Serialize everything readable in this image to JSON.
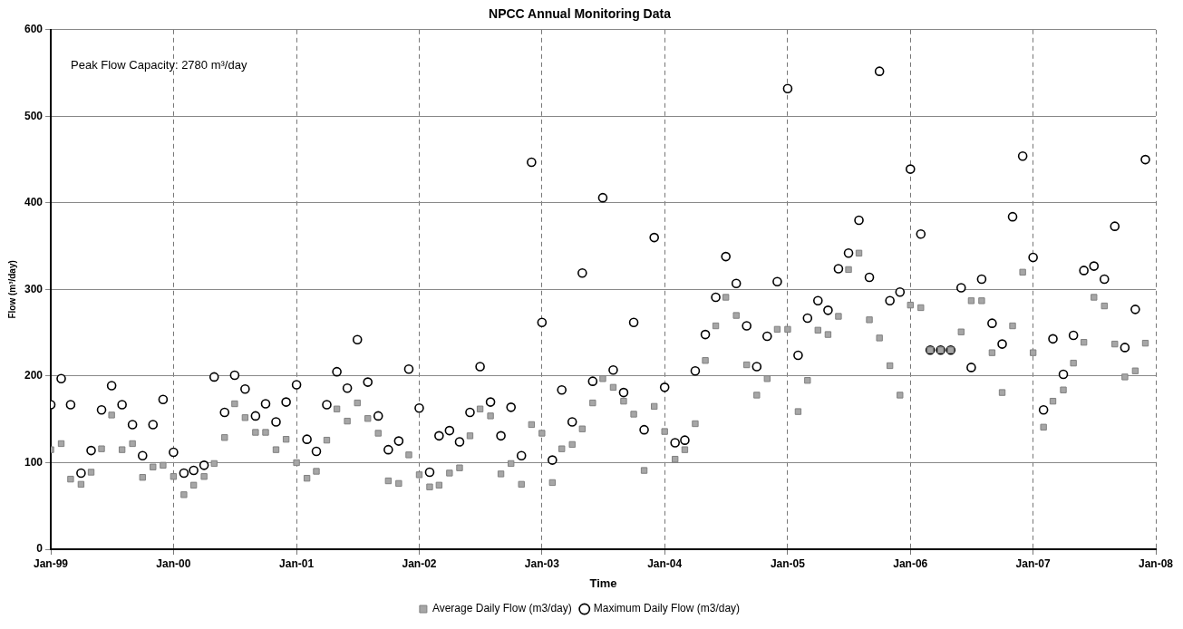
{
  "chart_data": {
    "type": "scatter",
    "title": "NPCC Annual Monitoring Data",
    "xlabel": "Time",
    "ylabel": "Flow (m³/day)",
    "annotations": [
      "Peak Flow Capacity: 2780 m³/day"
    ],
    "x": [
      "1999-01",
      "1999-02",
      "1999-03",
      "1999-04",
      "1999-05",
      "1999-06",
      "1999-07",
      "1999-08",
      "1999-09",
      "1999-10",
      "1999-11",
      "1999-12",
      "2000-01",
      "2000-02",
      "2000-03",
      "2000-04",
      "2000-05",
      "2000-06",
      "2000-07",
      "2000-08",
      "2000-09",
      "2000-10",
      "2000-11",
      "2000-12",
      "2001-01",
      "2001-02",
      "2001-03",
      "2001-04",
      "2001-05",
      "2001-06",
      "2001-07",
      "2001-08",
      "2001-09",
      "2001-10",
      "2001-11",
      "2001-12",
      "2002-01",
      "2002-02",
      "2002-03",
      "2002-04",
      "2002-05",
      "2002-06",
      "2002-07",
      "2002-08",
      "2002-09",
      "2002-10",
      "2002-11",
      "2002-12",
      "2003-01",
      "2003-02",
      "2003-03",
      "2003-04",
      "2003-05",
      "2003-06",
      "2003-07",
      "2003-08",
      "2003-09",
      "2003-10",
      "2003-11",
      "2003-12",
      "2004-01",
      "2004-02",
      "2004-03",
      "2004-04",
      "2004-05",
      "2004-06",
      "2004-07",
      "2004-08",
      "2004-09",
      "2004-10",
      "2004-11",
      "2004-12",
      "2005-01",
      "2005-02",
      "2005-03",
      "2005-04",
      "2005-05",
      "2005-06",
      "2005-07",
      "2005-08",
      "2005-09",
      "2005-10",
      "2005-11",
      "2005-12",
      "2006-01",
      "2006-02",
      "2006-03",
      "2006-04",
      "2006-05",
      "2006-06",
      "2006-07",
      "2006-08",
      "2006-09",
      "2006-10",
      "2006-11",
      "2006-12",
      "2007-01",
      "2007-02",
      "2007-03",
      "2007-04",
      "2007-05",
      "2007-06",
      "2007-07",
      "2007-08",
      "2007-09",
      "2007-10",
      "2007-11",
      "2007-12"
    ],
    "series": [
      {
        "name": "Average Daily Flow (m3/day)",
        "color": "#a6a6a6",
        "marker": "square",
        "values": [
          115,
          122,
          81,
          75,
          89,
          116,
          155,
          115,
          122,
          83,
          95,
          97,
          84,
          63,
          74,
          84,
          99,
          129,
          168,
          152,
          135,
          135,
          115,
          127,
          100,
          82,
          90,
          126,
          162,
          148,
          169,
          151,
          134,
          79,
          76,
          109,
          86,
          72,
          74,
          88,
          94,
          131,
          162,
          154,
          87,
          99,
          75,
          144,
          134,
          77,
          116,
          121,
          139,
          169,
          197,
          187,
          171,
          156,
          91,
          165,
          136,
          104,
          115,
          145,
          218,
          258,
          291,
          270,
          213,
          178,
          197,
          254,
          254,
          159,
          195,
          253,
          248,
          269,
          323,
          342,
          265,
          244,
          212,
          178,
          282,
          279,
          230,
          230,
          230,
          251,
          287,
          287,
          227,
          181,
          258,
          320,
          227,
          141,
          171,
          184,
          215,
          239,
          291,
          281,
          237,
          199,
          206,
          238
        ]
      },
      {
        "name": "Maximum Daily Flow (m3/day)",
        "color": "#000000",
        "marker": "circle",
        "values": [
          167,
          197,
          167,
          88,
          114,
          161,
          189,
          167,
          144,
          108,
          144,
          173,
          112,
          88,
          91,
          97,
          199,
          158,
          201,
          185,
          154,
          168,
          147,
          170,
          190,
          127,
          113,
          167,
          205,
          186,
          242,
          193,
          154,
          115,
          125,
          208,
          163,
          89,
          131,
          137,
          124,
          158,
          211,
          170,
          131,
          164,
          108,
          447,
          262,
          103,
          184,
          147,
          319,
          194,
          406,
          207,
          181,
          262,
          138,
          360,
          187,
          123,
          126,
          206,
          248,
          291,
          338,
          307,
          258,
          211,
          246,
          309,
          532,
          224,
          267,
          287,
          276,
          324,
          342,
          380,
          314,
          552,
          287,
          297,
          439,
          364,
          230,
          230,
          230,
          302,
          210,
          312,
          261,
          237,
          384,
          454,
          337,
          161,
          243,
          202,
          247,
          322,
          327,
          312,
          373,
          233,
          277,
          450
        ]
      }
    ],
    "xlim": [
      "1999-01",
      "2008-01"
    ],
    "xticks": [
      {
        "value": "1999-01",
        "label": "Jan-99"
      },
      {
        "value": "2000-01",
        "label": "Jan-00"
      },
      {
        "value": "2001-01",
        "label": "Jan-01"
      },
      {
        "value": "2002-01",
        "label": "Jan-02"
      },
      {
        "value": "2003-01",
        "label": "Jan-03"
      },
      {
        "value": "2004-01",
        "label": "Jan-04"
      },
      {
        "value": "2005-01",
        "label": "Jan-05"
      },
      {
        "value": "2006-01",
        "label": "Jan-06"
      },
      {
        "value": "2007-01",
        "label": "Jan-07"
      },
      {
        "value": "2008-01",
        "label": "Jan-08"
      }
    ],
    "ylim": [
      0,
      600
    ],
    "yticks": [
      0,
      100,
      200,
      300,
      400,
      500,
      600
    ],
    "grid": true,
    "legend": "bottom"
  }
}
